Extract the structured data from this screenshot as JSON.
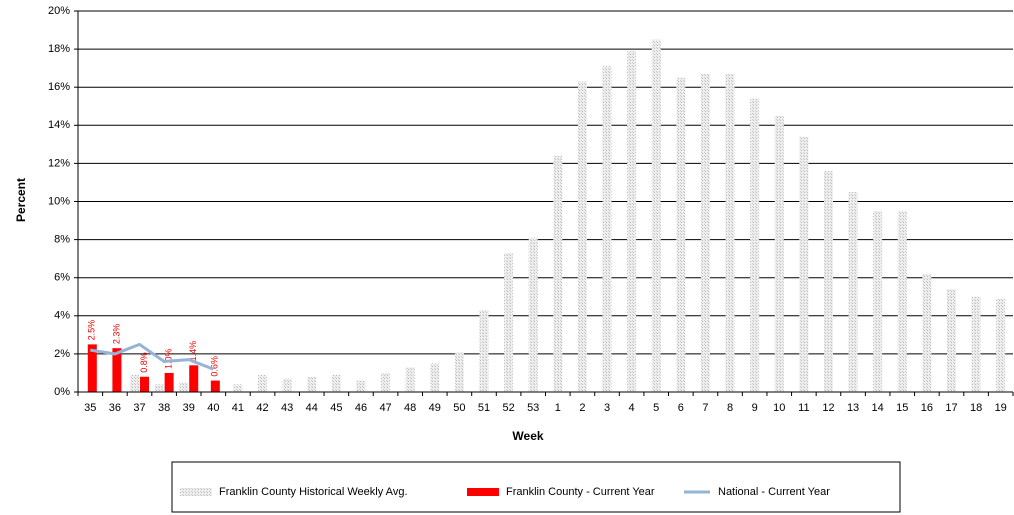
{
  "chart_data": {
    "type": "bar",
    "x_label": "Week",
    "y_label": "Percent",
    "categories": [
      "35",
      "36",
      "37",
      "38",
      "39",
      "40",
      "41",
      "42",
      "43",
      "44",
      "45",
      "46",
      "47",
      "48",
      "49",
      "50",
      "51",
      "52",
      "53",
      "1",
      "2",
      "3",
      "4",
      "5",
      "6",
      "7",
      "8",
      "9",
      "10",
      "11",
      "12",
      "13",
      "14",
      "15",
      "16",
      "17",
      "18",
      "19"
    ],
    "series": [
      {
        "name": "Franklin County Historical Weekly Avg.",
        "kind": "bar",
        "color": "#d9d9d9",
        "values": [
          null,
          null,
          0.9,
          0.4,
          0.5,
          null,
          0.4,
          0.9,
          0.7,
          0.8,
          0.9,
          0.6,
          1.0,
          1.3,
          1.5,
          2.1,
          4.3,
          7.3,
          8.1,
          12.4,
          16.3,
          17.1,
          17.9,
          18.5,
          16.5,
          16.7,
          16.7,
          15.4,
          14.5,
          13.4,
          11.6,
          10.5,
          9.5,
          9.5,
          6.2,
          5.4,
          5.0,
          4.9
        ]
      },
      {
        "name": "Franklin County - Current Year",
        "kind": "bar",
        "color": "#ff0000",
        "values": [
          2.5,
          2.3,
          0.8,
          1.0,
          1.4,
          0.6,
          null,
          null,
          null,
          null,
          null,
          null,
          null,
          null,
          null,
          null,
          null,
          null,
          null,
          null,
          null,
          null,
          null,
          null,
          null,
          null,
          null,
          null,
          null,
          null,
          null,
          null,
          null,
          null,
          null,
          null,
          null,
          null
        ],
        "value_labels": [
          "2.5%",
          "2.3%",
          "0.8%",
          "1.0%",
          "1.4%",
          "0.6%",
          null,
          null,
          null,
          null,
          null,
          null,
          null,
          null,
          null,
          null,
          null,
          null,
          null,
          null,
          null,
          null,
          null,
          null,
          null,
          null,
          null,
          null,
          null,
          null,
          null,
          null,
          null,
          null,
          null,
          null,
          null,
          null
        ]
      },
      {
        "name": "National - Current Year",
        "kind": "line",
        "color": "#95b3d7",
        "values": [
          2.2,
          2.0,
          2.5,
          1.6,
          1.7,
          1.2,
          null,
          null,
          null,
          null,
          null,
          null,
          null,
          null,
          null,
          null,
          null,
          null,
          null,
          null,
          null,
          null,
          null,
          null,
          null,
          null,
          null,
          null,
          null,
          null,
          null,
          null,
          null,
          null,
          null,
          null,
          null,
          null
        ]
      }
    ],
    "ylim": [
      0,
      20
    ],
    "yticks": [
      {
        "value": 0,
        "label": "0%"
      },
      {
        "value": 2,
        "label": "2%"
      },
      {
        "value": 4,
        "label": "4%"
      },
      {
        "value": 6,
        "label": "6%"
      },
      {
        "value": 8,
        "label": "8%"
      },
      {
        "value": 10,
        "label": "10%"
      },
      {
        "value": 12,
        "label": "12%"
      },
      {
        "value": 14,
        "label": "14%"
      },
      {
        "value": 16,
        "label": "16%"
      },
      {
        "value": 18,
        "label": "18%"
      },
      {
        "value": 20,
        "label": "20%"
      }
    ],
    "grid": true
  }
}
